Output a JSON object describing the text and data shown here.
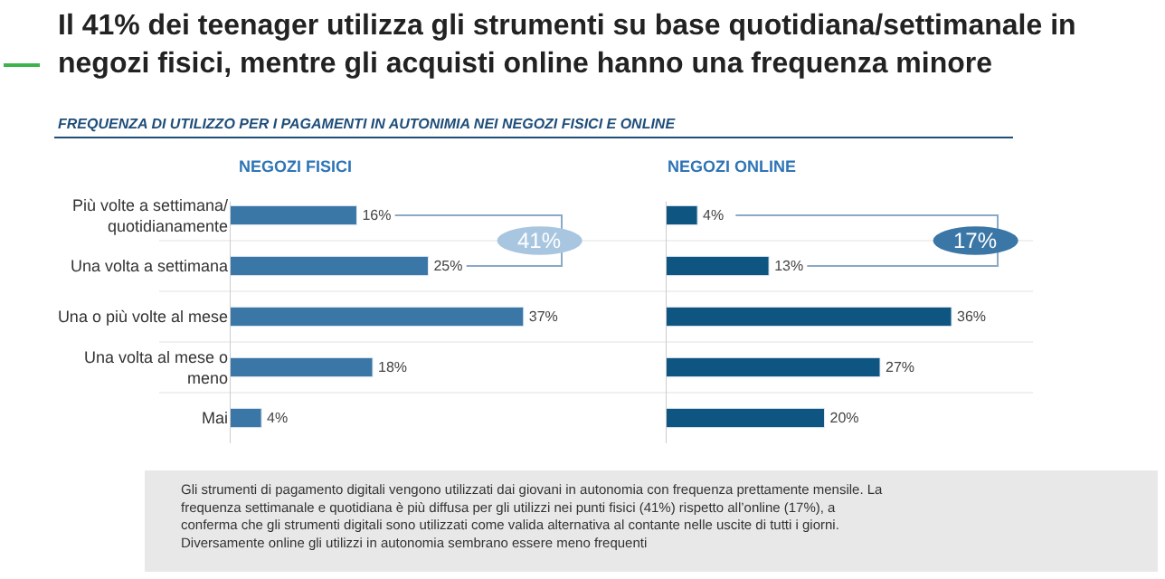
{
  "chart_data": [
    {
      "type": "other",
      "title": "Il 41% dei teenager utilizza gli strumenti su base quotidiana/settimanale in negozi fisici, mentre gli acquisti online hanno una frequenza minore",
      "subtitle": "FREQUENZA DI UTILIZZO PER I PAGAMENTI IN AUTONIMIA NEI NEGOZI FISICI E ONLINE",
      "annotations": [
        "Gli strumenti di pagamento digitali vengono utilizzati dai giovani in autonomia con frequenza prettamente mensile. La frequenza settimanale e quotidiana è più diffusa per gli utilizzi nei punti fisici (41%) rispetto all’online (17%), a conferma che gli strumenti digitali sono utilizzati come valida alternativa al contante nelle uscite di tutti i giorni. Diversamente online gli utilizzi in autonomia sembrano essere meno frequenti"
      ]
    },
    {
      "type": "bar",
      "orientation": "horizontal",
      "title": "NEGOZI FISICI",
      "categories": [
        "Più volte a settimana/ quotidianamente",
        "Una volta a settimana",
        "Una o più volte al mese",
        "Una volta al mese o meno",
        "Mai"
      ],
      "values": [
        16,
        25,
        37,
        18,
        4
      ],
      "color": "#3a76a6",
      "value_labels": [
        "16%",
        "25%",
        "37%",
        "18%",
        "4%"
      ],
      "annotations": [
        "41%"
      ],
      "tick_labels": "y"
    },
    {
      "type": "bar",
      "orientation": "horizontal",
      "title": "NEGOZI ONLINE",
      "categories": [
        null,
        null,
        null,
        null,
        null
      ],
      "values": [
        4,
        13,
        36,
        27,
        20
      ],
      "color": "#0e5581",
      "value_labels": [
        "4%",
        "13%",
        "36%",
        "27%",
        "20%"
      ],
      "annotations": [
        "17%"
      ],
      "tick_labels": false
    }
  ]
}
